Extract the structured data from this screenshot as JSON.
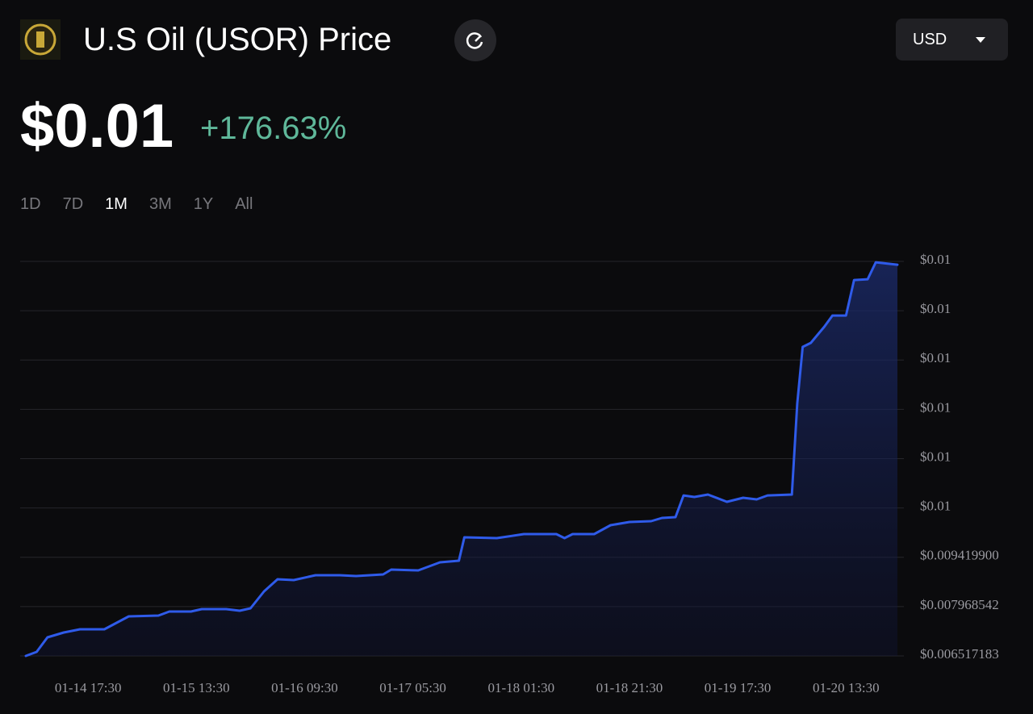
{
  "header": {
    "title": "U.S Oil (USOR) Price",
    "currency": "USD",
    "price": "$0.01",
    "change": "+176.63%",
    "ranges": [
      "1D",
      "7D",
      "1M",
      "3M",
      "1Y",
      "All"
    ],
    "active_range": "1M"
  },
  "chart_data": {
    "type": "area",
    "color": "#2f5bea",
    "grid": true,
    "x": [
      "01-14 06:00",
      "01-14 08:00",
      "01-14 10:00",
      "01-14 13:00",
      "01-14 16:00",
      "01-14 20:30",
      "01-15 01:00",
      "01-15 06:30",
      "01-15 08:30",
      "01-15 12:30",
      "01-15 14:30",
      "01-15 19:00",
      "01-15 21:30",
      "01-15 23:30",
      "01-16 02:00",
      "01-16 04:30",
      "01-16 07:30",
      "01-16 11:30",
      "01-16 16:00",
      "01-16 19:00",
      "01-17 00:00",
      "01-17 01:30",
      "01-17 06:30",
      "01-17 10:30",
      "01-17 14:00",
      "01-17 15:00",
      "01-17 21:00",
      "01-18 02:00",
      "01-18 08:00",
      "01-18 09:30",
      "01-18 11:00",
      "01-18 15:00",
      "01-18 18:00",
      "01-18 21:30",
      "01-19 01:30",
      "01-19 03:30",
      "01-19 06:00",
      "01-19 07:30",
      "01-19 09:30",
      "01-19 12:00",
      "01-19 15:30",
      "01-19 18:30",
      "01-19 21:00",
      "01-19 23:00",
      "01-20 03:30",
      "01-20 04:30",
      "01-20 05:30",
      "01-20 07:00",
      "01-20 09:30",
      "01-20 11:00",
      "01-20 13:30",
      "01-20 15:00",
      "01-20 17:30",
      "01-20 19:00",
      "01-20 23:00"
    ],
    "values": [
      0.006517,
      0.006636,
      0.007063,
      0.007206,
      0.007301,
      0.007301,
      0.00768,
      0.007704,
      0.007823,
      0.007823,
      0.007894,
      0.007894,
      0.007847,
      0.007918,
      0.008417,
      0.008773,
      0.008749,
      0.008892,
      0.008892,
      0.008868,
      0.008915,
      0.009057,
      0.009034,
      0.009271,
      0.009318,
      0.010007,
      0.009983,
      0.010102,
      0.010102,
      0.009983,
      0.010102,
      0.010102,
      0.010363,
      0.010458,
      0.010482,
      0.010577,
      0.0106,
      0.011241,
      0.011194,
      0.011265,
      0.011052,
      0.01117,
      0.011123,
      0.011241,
      0.011265,
      0.013948,
      0.01561,
      0.015729,
      0.016204,
      0.016536,
      0.016536,
      0.01758,
      0.017604,
      0.018102,
      0.018031
    ],
    "xlim": [
      "01-14 06:00",
      "01-20 23:00"
    ],
    "xticks": [
      "01-14 17:30",
      "01-15 13:30",
      "01-16 09:30",
      "01-17 05:30",
      "01-18 01:30",
      "01-18 21:30",
      "01-19 17:30",
      "01-20 13:30"
    ],
    "ylim": [
      0.006517183,
      0.018128054
    ],
    "yticks": [
      {
        "value": 0.006517183,
        "label": "$0.006517183"
      },
      {
        "value": 0.007968542,
        "label": "$0.007968542"
      },
      {
        "value": 0.0094199,
        "label": "$0.009419900"
      },
      {
        "value": 0.010871259,
        "label": "$0.01"
      },
      {
        "value": 0.012322618,
        "label": "$0.01"
      },
      {
        "value": 0.013773977,
        "label": "$0.01"
      },
      {
        "value": 0.015225336,
        "label": "$0.01"
      },
      {
        "value": 0.016676695,
        "label": "$0.01"
      },
      {
        "value": 0.018128054,
        "label": "$0.01"
      }
    ]
  }
}
